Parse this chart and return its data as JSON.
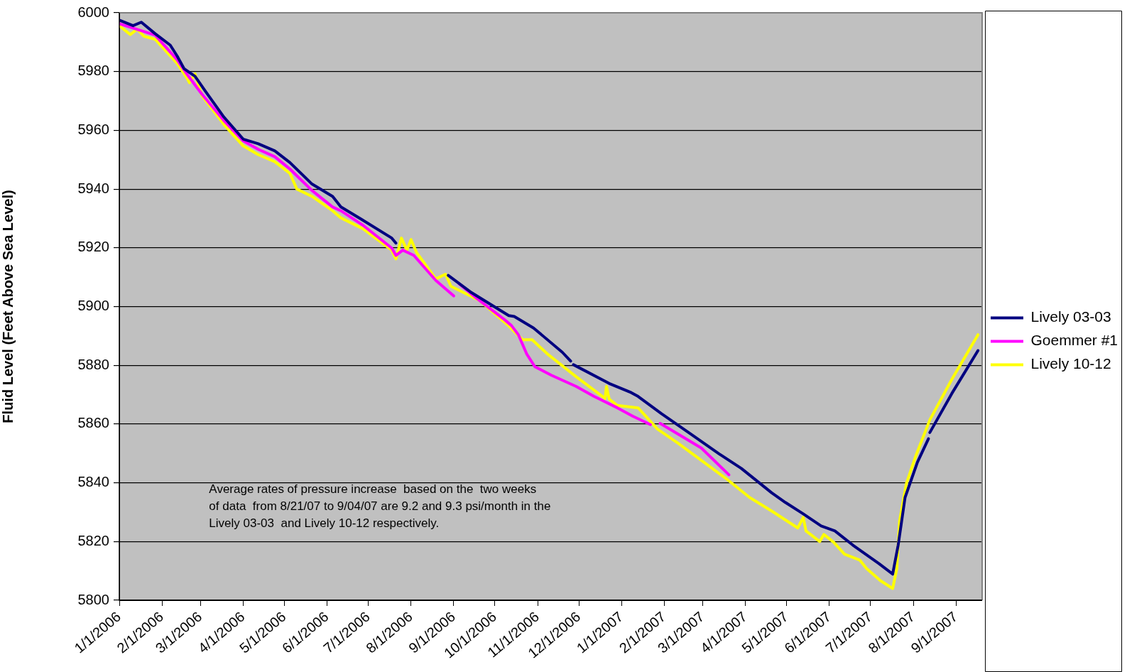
{
  "chart_data": {
    "type": "line",
    "ylabel": "Fluid Level (Feet Above Sea Level)",
    "annotations": [
      "Average rates of pressure increase  based on the  two weeks\nof data  from 8/21/07 to 9/04/07 are 9.2 and 9.3 psi/month in the\nLively 03-03  and Lively 10-12 respectively."
    ],
    "xlim": [
      "2006-01-01",
      "2007-09-20"
    ],
    "xticks": [
      {
        "value": "2006-01-01",
        "label": "1/1/2006"
      },
      {
        "value": "2006-02-01",
        "label": "2/1/2006"
      },
      {
        "value": "2006-03-01",
        "label": "3/1/2006"
      },
      {
        "value": "2006-04-01",
        "label": "4/1/2006"
      },
      {
        "value": "2006-05-01",
        "label": "5/1/2006"
      },
      {
        "value": "2006-06-01",
        "label": "6/1/2006"
      },
      {
        "value": "2006-07-01",
        "label": "7/1/2006"
      },
      {
        "value": "2006-08-01",
        "label": "8/1/2006"
      },
      {
        "value": "2006-09-01",
        "label": "9/1/2006"
      },
      {
        "value": "2006-10-01",
        "label": "10/1/2006"
      },
      {
        "value": "2006-11-01",
        "label": "11/1/2006"
      },
      {
        "value": "2006-12-01",
        "label": "12/1/2006"
      },
      {
        "value": "2007-01-01",
        "label": "1/1/2007"
      },
      {
        "value": "2007-02-01",
        "label": "2/1/2007"
      },
      {
        "value": "2007-03-01",
        "label": "3/1/2007"
      },
      {
        "value": "2007-04-01",
        "label": "4/1/2007"
      },
      {
        "value": "2007-05-01",
        "label": "5/1/2007"
      },
      {
        "value": "2007-06-01",
        "label": "6/1/2007"
      },
      {
        "value": "2007-07-01",
        "label": "7/1/2007"
      },
      {
        "value": "2007-08-01",
        "label": "8/1/2007"
      },
      {
        "value": "2007-09-01",
        "label": "9/1/2007"
      }
    ],
    "ylim": [
      5800,
      6000
    ],
    "yticks": [
      5800,
      5820,
      5840,
      5860,
      5880,
      5900,
      5920,
      5940,
      5960,
      5980,
      6000
    ],
    "grid": "y",
    "legend": "right",
    "marker": "none",
    "line_style": "solid",
    "series": [
      {
        "name": "Lively 03-03",
        "color": "#000080",
        "x": [
          "2006-01-01",
          "2006-01-11",
          "2006-01-17",
          "2006-01-27",
          "2006-02-07",
          "2006-02-12",
          "2006-02-17",
          "2006-02-25",
          "2006-03-05",
          "2006-03-18",
          "2006-04-01",
          "2006-04-12",
          "2006-04-24",
          "2006-05-05",
          "2006-05-21",
          "2006-06-05",
          "2006-06-11",
          "2006-06-27",
          "2006-07-18",
          "2006-07-21",
          "2006-08-10",
          "2006-08-28",
          "2006-09-14",
          "2006-10-11",
          "2006-10-15",
          "2006-10-29",
          "2006-11-19",
          "2006-11-25",
          "2006-11-26",
          "2006-11-27",
          "2006-12-23",
          "2007-01-08",
          "2007-01-13",
          "2007-01-30",
          "2007-02-20",
          "2007-03-13",
          "2007-03-29",
          "2007-04-20",
          "2007-04-30",
          "2007-05-13",
          "2007-05-26",
          "2007-06-05",
          "2007-06-18",
          "2007-07-07",
          "2007-07-17",
          "2007-07-21",
          "2007-07-26",
          "2007-08-04",
          "2007-08-12",
          "2007-08-12T12:00",
          "2007-08-13",
          "2007-08-29",
          "2007-09-17"
        ],
        "values": [
          5997.5,
          5995.6,
          5996.8,
          5992.9,
          5989,
          5985.3,
          5981,
          5978.4,
          5973,
          5964.5,
          5957,
          5955.4,
          5953,
          5949,
          5941.7,
          5937.5,
          5933.9,
          5929.4,
          5923.3,
          5921.6,
          null,
          5910.6,
          5904.7,
          5896.9,
          5896.6,
          5892.7,
          5884.4,
          5881.4,
          null,
          5880.2,
          5873.8,
          5870.7,
          5869.4,
          5863.5,
          5856.7,
          5849.8,
          5844.9,
          5836.6,
          5833.3,
          5829.4,
          5825.3,
          5823.6,
          5818.8,
          5812.5,
          5808.9,
          5818.8,
          5835,
          5847,
          5855,
          null,
          5857.1,
          5870.4,
          5885
        ]
      },
      {
        "name": "Goemmer #1",
        "color": "#ff00ff",
        "x": [
          "2006-01-01",
          "2006-01-27",
          "2006-02-12",
          "2006-02-19",
          "2006-03-02",
          "2006-03-18",
          "2006-04-01",
          "2006-04-12",
          "2006-04-24",
          "2006-05-05",
          "2006-05-21",
          "2006-06-05",
          "2006-06-11",
          "2006-06-27",
          "2006-07-18",
          "2006-07-21",
          "2006-07-26",
          "2006-08-03",
          "2006-08-19",
          "2006-09-01",
          "2006-09-03",
          "2006-09-05",
          "2006-09-18",
          "2006-10-08",
          "2006-10-13",
          "2006-10-18",
          "2006-10-24",
          "2006-10-30",
          "2006-11-11",
          "2006-11-29",
          "2006-12-12",
          "2006-12-29",
          "2007-01-09",
          "2007-01-22",
          "2007-01-26",
          "2007-01-29",
          "2007-02-11",
          "2007-02-28",
          "2007-03-20"
        ],
        "values": [
          5996.3,
          5992.4,
          5984,
          5979.2,
          5972.3,
          5963.3,
          5956.4,
          5953.5,
          5951,
          5946.8,
          5939.5,
          5933.9,
          5932.6,
          5927.7,
          5919.9,
          5917.4,
          5919.2,
          5917.4,
          5908.9,
          5903.6,
          null,
          5907.7,
          5902.7,
          5895.5,
          5893.5,
          5890.4,
          5883.9,
          5879.5,
          5876.6,
          5872.8,
          5869.4,
          5865.5,
          5862.7,
          5859.8,
          null,
          5860.2,
          5856.6,
          5851.8,
          5842.7
        ]
      },
      {
        "name": "Lively 10-12",
        "color": "#ffff00",
        "x": [
          "2006-01-01",
          "2006-01-09",
          "2006-01-14",
          "2006-01-19",
          "2006-01-27",
          "2006-02-12",
          "2006-02-19",
          "2006-02-21",
          "2006-02-25",
          "2006-03-02",
          "2006-03-18",
          "2006-04-01",
          "2006-04-12",
          "2006-04-24",
          "2006-05-05",
          "2006-05-10",
          "2006-05-21",
          "2006-06-05",
          "2006-06-11",
          "2006-06-27",
          "2006-07-18",
          "2006-07-21",
          "2006-07-25",
          "2006-07-29",
          "2006-08-01",
          "2006-08-05",
          "2006-08-19",
          "2006-08-26",
          "2006-08-30",
          "2006-09-20",
          "2006-10-11",
          "2006-10-21",
          "2006-10-28",
          "2006-11-08",
          "2006-11-29",
          "2006-12-20",
          "2006-12-21",
          "2006-12-23",
          "2006-12-29",
          "2007-01-13",
          "2007-01-27",
          "2007-02-11",
          "2007-03-18",
          "2007-04-04",
          "2007-04-21",
          "2007-05-09",
          "2007-05-13",
          "2007-05-15",
          "2007-05-25",
          "2007-05-28",
          "2007-06-04",
          "2007-06-12",
          "2007-06-23",
          "2007-06-28",
          "2007-07-08",
          "2007-07-17",
          "2007-07-20",
          "2007-07-22",
          "2007-07-27",
          "2007-08-03",
          "2007-08-13",
          "2007-08-29",
          "2007-09-17"
        ],
        "values": [
          5995.6,
          5992.6,
          5994.4,
          5992,
          5991,
          5982.8,
          5977.9,
          5976.2,
          5979.2,
          5971.8,
          5962,
          5954.7,
          5951.7,
          5949.3,
          5945.3,
          5940,
          5937.5,
          5932.6,
          5930.2,
          5926.5,
          5919.2,
          5916.2,
          5923.3,
          5919.2,
          5922.8,
          5918.4,
          5909.4,
          5911,
          5906.9,
          5902,
          5893.4,
          5888.7,
          5888.7,
          5883.9,
          5876.1,
          5868.7,
          5872.8,
          5868.5,
          5866.3,
          5865.5,
          5858.3,
          5853.5,
          5841.4,
          5835,
          5830.1,
          5824.6,
          5828.2,
          5823.6,
          5820,
          5822.4,
          5819.8,
          5815.7,
          5813.7,
          5810.8,
          5806.7,
          5804,
          5810.8,
          5827,
          5839.8,
          5849.4,
          5861.4,
          5875.2,
          5890.4
        ]
      }
    ]
  }
}
